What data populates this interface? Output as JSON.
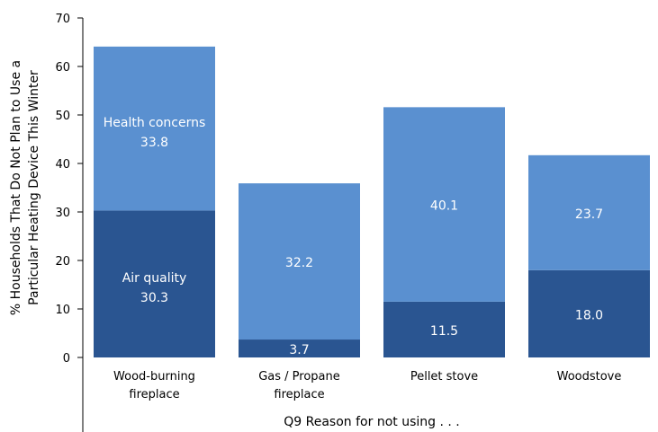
{
  "chart_data": {
    "type": "bar",
    "stacked": true,
    "categories": [
      [
        "Wood-burning",
        "fireplace"
      ],
      [
        "Gas / Propane",
        "fireplace"
      ],
      [
        "Pellet stove"
      ],
      [
        "Woodstove"
      ]
    ],
    "series": [
      {
        "name": "Air quality",
        "values": [
          30.3,
          3.7,
          11.5,
          18.0
        ],
        "color": "#2a5591"
      },
      {
        "name": "Health concerns",
        "values": [
          33.8,
          32.2,
          40.1,
          23.7
        ],
        "color": "#5a90d0"
      }
    ],
    "value_labels": [
      [
        "30.3",
        "3.7",
        "11.5",
        "18.0"
      ],
      [
        "33.8",
        "32.2",
        "40.1",
        "23.7"
      ]
    ],
    "series_label_category": 0,
    "xlabel": "Q9 Reason for not using . . .",
    "ylabel": [
      "% Households That Do Not Plan to Use a",
      "Particular Heating Device This Winter"
    ],
    "ylim": [
      0,
      70
    ],
    "yticks": [
      0,
      10,
      20,
      30,
      40,
      50,
      60,
      70
    ],
    "grid": false,
    "legend": "none"
  }
}
